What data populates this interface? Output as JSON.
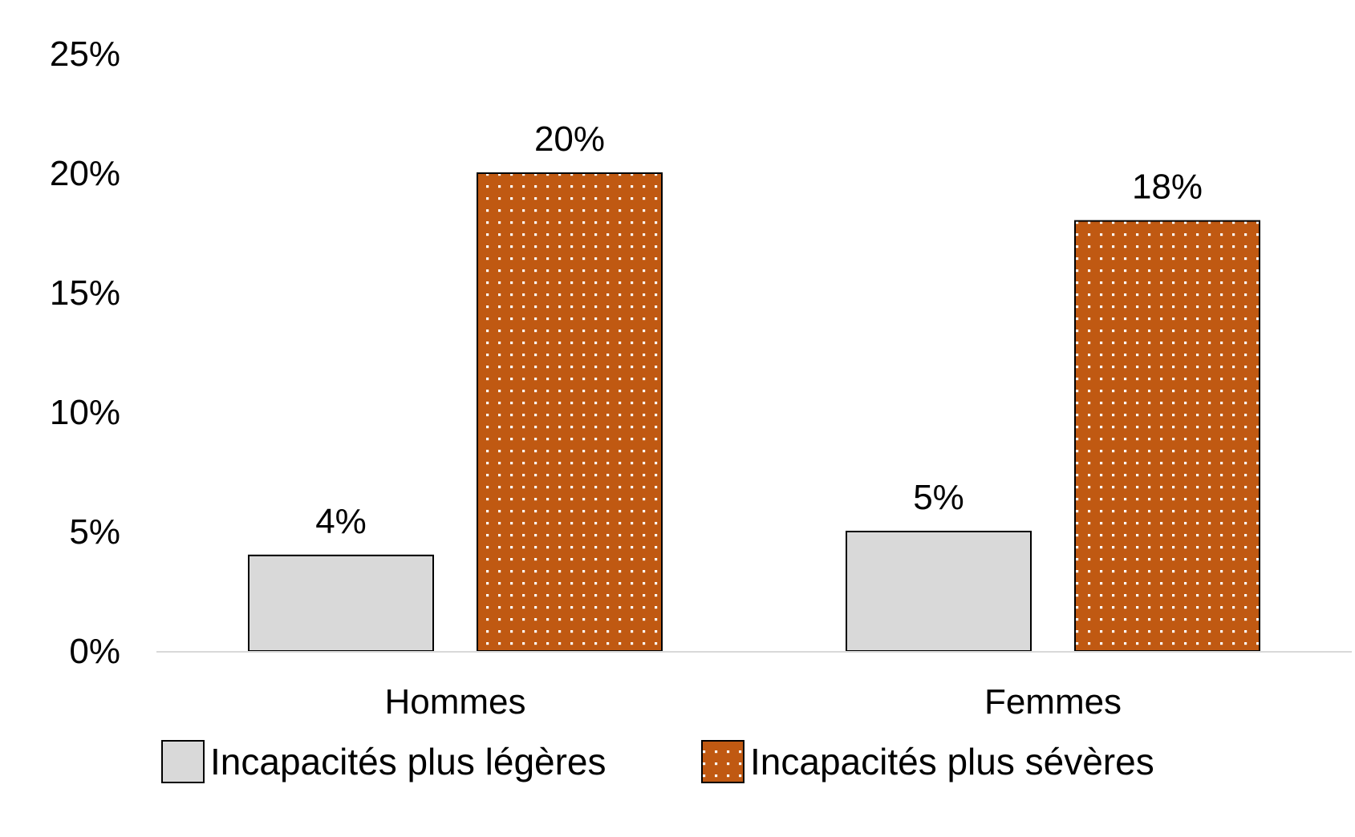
{
  "chart_data": {
    "type": "bar",
    "title": "",
    "xlabel": "",
    "ylabel": "",
    "categories": [
      "Hommes",
      "Femmes"
    ],
    "series": [
      {
        "name": "Incapacités plus légères",
        "values": [
          4,
          5
        ],
        "labels": [
          "4%",
          "5%"
        ],
        "color": "#d9d9d9",
        "pattern": "solid"
      },
      {
        "name": "Incapacités plus sévères",
        "values": [
          20,
          18
        ],
        "labels": [
          "20%",
          "18%"
        ],
        "color": "#c05912",
        "pattern": "dotted"
      }
    ],
    "ylim": [
      0,
      25
    ],
    "yticks": [
      0,
      5,
      10,
      15,
      20,
      25
    ],
    "ytick_labels": [
      "0%",
      "5%",
      "10%",
      "15%",
      "20%",
      "25%"
    ],
    "grid": false,
    "legend_position": "bottom"
  }
}
